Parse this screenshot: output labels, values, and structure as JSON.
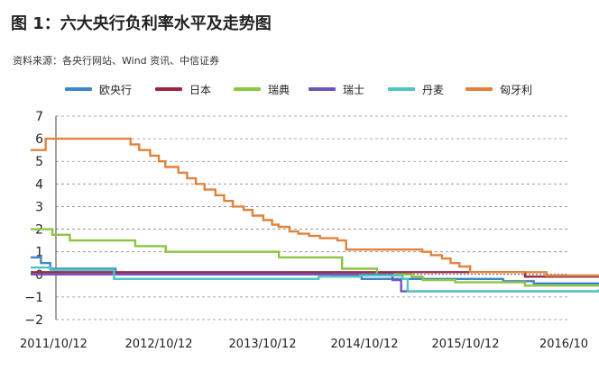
{
  "header": {
    "title": "图 1：六大央行负利率水平及走势图",
    "source": "资料来源：各央行网站、Wind 资讯、中信证券"
  },
  "chart_data": {
    "type": "line",
    "title": "图 1：六大央行负利率水平及走势图",
    "xlabel": "",
    "ylabel": "",
    "ylim": [
      -2,
      7
    ],
    "yticks": [
      -2,
      -1,
      0,
      1,
      2,
      3,
      4,
      5,
      6,
      7
    ],
    "ytick_labels": [
      "−2",
      "−1",
      "0",
      "1",
      "2",
      "3",
      "4",
      "5",
      "6",
      "7"
    ],
    "xlim": [
      "2011/10/12",
      "2016/10/12"
    ],
    "xtick_labels": [
      "2011/10/12",
      "2012/10/12",
      "2013/10/12",
      "2014/10/12",
      "2015/10/12",
      "2016/10"
    ],
    "grid": "horizontal dashed",
    "legend_position": "top",
    "series": [
      {
        "name": "欧央行",
        "color": "#3f86c8",
        "points": [
          [
            "2011-10-12",
            0.75
          ],
          [
            "2011-11-14",
            0.5
          ],
          [
            "2011-12-14",
            0.25
          ],
          [
            "2012-07-11",
            0.0
          ],
          [
            "2013-05-08",
            0.0
          ],
          [
            "2014-06-11",
            -0.1
          ],
          [
            "2014-09-10",
            -0.2
          ],
          [
            "2015-12-09",
            -0.3
          ],
          [
            "2016-03-16",
            -0.4
          ],
          [
            "2016-10-12",
            -0.4
          ]
        ]
      },
      {
        "name": "日本",
        "color": "#9c2745",
        "points": [
          [
            "2011-10-12",
            0.1
          ],
          [
            "2016-02-16",
            0.1
          ],
          [
            "2016-02-17",
            -0.1
          ],
          [
            "2016-10-12",
            -0.1
          ]
        ]
      },
      {
        "name": "瑞典",
        "color": "#8cc63f",
        "points": [
          [
            "2011-10-12",
            2.0
          ],
          [
            "2011-12-21",
            1.75
          ],
          [
            "2012-02-15",
            1.5
          ],
          [
            "2012-09-12",
            1.25
          ],
          [
            "2012-12-19",
            1.0
          ],
          [
            "2013-12-18",
            0.75
          ],
          [
            "2014-07-09",
            0.25
          ],
          [
            "2014-10-29",
            0.0
          ],
          [
            "2015-02-18",
            -0.1
          ],
          [
            "2015-03-25",
            -0.25
          ],
          [
            "2015-07-08",
            -0.35
          ],
          [
            "2016-02-17",
            -0.5
          ],
          [
            "2016-10-12",
            -0.5
          ]
        ]
      },
      {
        "name": "瑞士",
        "color": "#6b55b8",
        "points": [
          [
            "2011-10-12",
            0.0
          ],
          [
            "2014-12-18",
            -0.25
          ],
          [
            "2015-01-15",
            -0.75
          ],
          [
            "2016-10-12",
            -0.75
          ]
        ]
      },
      {
        "name": "丹麦",
        "color": "#4fc6c2",
        "points": [
          [
            "2011-10-12",
            0.3
          ],
          [
            "2011-12-15",
            0.2
          ],
          [
            "2012-07-06",
            -0.2
          ],
          [
            "2014-04-25",
            -0.1
          ],
          [
            "2014-09-05",
            -0.05
          ],
          [
            "2015-01-20",
            -0.2
          ],
          [
            "2015-02-05",
            -0.75
          ],
          [
            "2016-10-12",
            -0.65
          ]
        ]
      },
      {
        "name": "匈牙利",
        "color": "#e3823a",
        "points": [
          [
            "2011-10-12",
            5.5
          ],
          [
            "2011-11-29",
            6.0
          ],
          [
            "2012-08-28",
            5.75
          ],
          [
            "2012-09-25",
            5.5
          ],
          [
            "2012-10-30",
            5.25
          ],
          [
            "2012-11-27",
            5.0
          ],
          [
            "2012-12-18",
            4.75
          ],
          [
            "2013-01-29",
            4.5
          ],
          [
            "2013-02-26",
            4.25
          ],
          [
            "2013-03-26",
            4.0
          ],
          [
            "2013-04-23",
            3.75
          ],
          [
            "2013-05-28",
            3.5
          ],
          [
            "2013-06-25",
            3.25
          ],
          [
            "2013-07-23",
            3.0
          ],
          [
            "2013-08-27",
            2.85
          ],
          [
            "2013-09-24",
            2.6
          ],
          [
            "2013-10-29",
            2.4
          ],
          [
            "2013-11-26",
            2.2
          ],
          [
            "2013-12-17",
            2.1
          ],
          [
            "2014-01-21",
            1.9
          ],
          [
            "2014-02-18",
            1.8
          ],
          [
            "2014-03-25",
            1.7
          ],
          [
            "2014-04-29",
            1.6
          ],
          [
            "2014-06-24",
            1.5
          ],
          [
            "2014-07-22",
            1.1
          ],
          [
            "2015-03-24",
            1.0
          ],
          [
            "2015-04-21",
            0.85
          ],
          [
            "2015-05-26",
            0.7
          ],
          [
            "2015-06-23",
            0.5
          ],
          [
            "2015-07-21",
            0.35
          ],
          [
            "2015-08-25",
            0.1
          ],
          [
            "2016-04-26",
            -0.05
          ],
          [
            "2016-10-12",
            -0.05
          ]
        ]
      }
    ]
  }
}
